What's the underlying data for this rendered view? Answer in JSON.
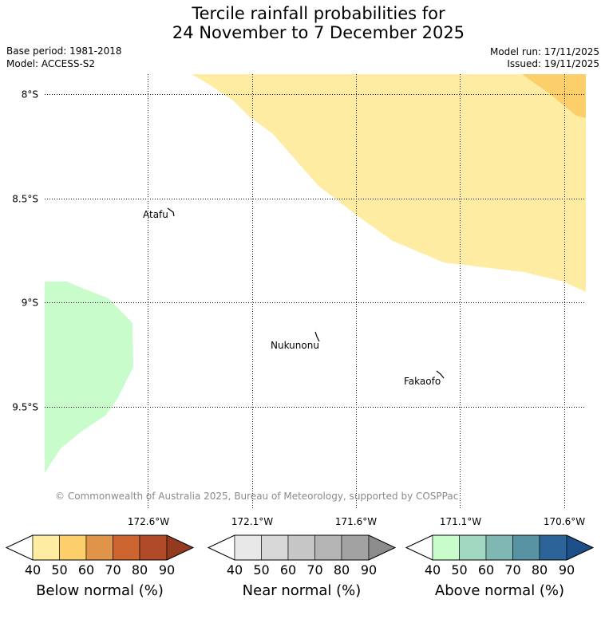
{
  "title": {
    "line1": "Tercile rainfall probabilities for",
    "line2": "24 November to 7 December 2025"
  },
  "header": {
    "base_period": "Base period: 1981-2018",
    "model": "Model: ACCESS-S2",
    "model_run": "Model run: 17/11/2025",
    "issued": "Issued: 19/11/2025"
  },
  "map": {
    "lat_labels": [
      "8°S",
      "8.5°S",
      "9°S",
      "9.5°S"
    ],
    "lon_labels": [
      "172.6°W",
      "172.1°W",
      "171.6°W",
      "171.1°W",
      "170.6°W"
    ],
    "places": {
      "atafu": "Atafu",
      "nukunonu": "Nukunonu",
      "fakaofo": "Fakaofo"
    },
    "attribution": "© Commonwealth of Australia 2025, Bureau of Meteorology, supported by COSPPac",
    "region_fills": {
      "below_40_50": "#fdeca1",
      "below_50_60": "#fdcf6a",
      "above_40_50": "#c8fcca"
    }
  },
  "legends": {
    "below": {
      "label": "Below normal (%)",
      "ticks": [
        "40",
        "50",
        "60",
        "70",
        "80",
        "90"
      ],
      "colors": [
        "#ffffff",
        "#fdeca1",
        "#fdcf6a",
        "#e0944a",
        "#cc6530",
        "#b04a28",
        "#933a1f"
      ]
    },
    "near": {
      "label": "Near normal (%)",
      "ticks": [
        "40",
        "50",
        "60",
        "70",
        "80",
        "90"
      ],
      "colors": [
        "#ffffff",
        "#e8e8e8",
        "#d7d7d7",
        "#c6c6c6",
        "#b4b4b4",
        "#a2a2a2",
        "#8c8c8c"
      ]
    },
    "above": {
      "label": "Above normal (%)",
      "ticks": [
        "40",
        "50",
        "60",
        "70",
        "80",
        "90"
      ],
      "colors": [
        "#ffffff",
        "#c8fcca",
        "#a2d8c0",
        "#7fb7b3",
        "#5793a2",
        "#2c6398",
        "#1c4f87"
      ]
    }
  }
}
